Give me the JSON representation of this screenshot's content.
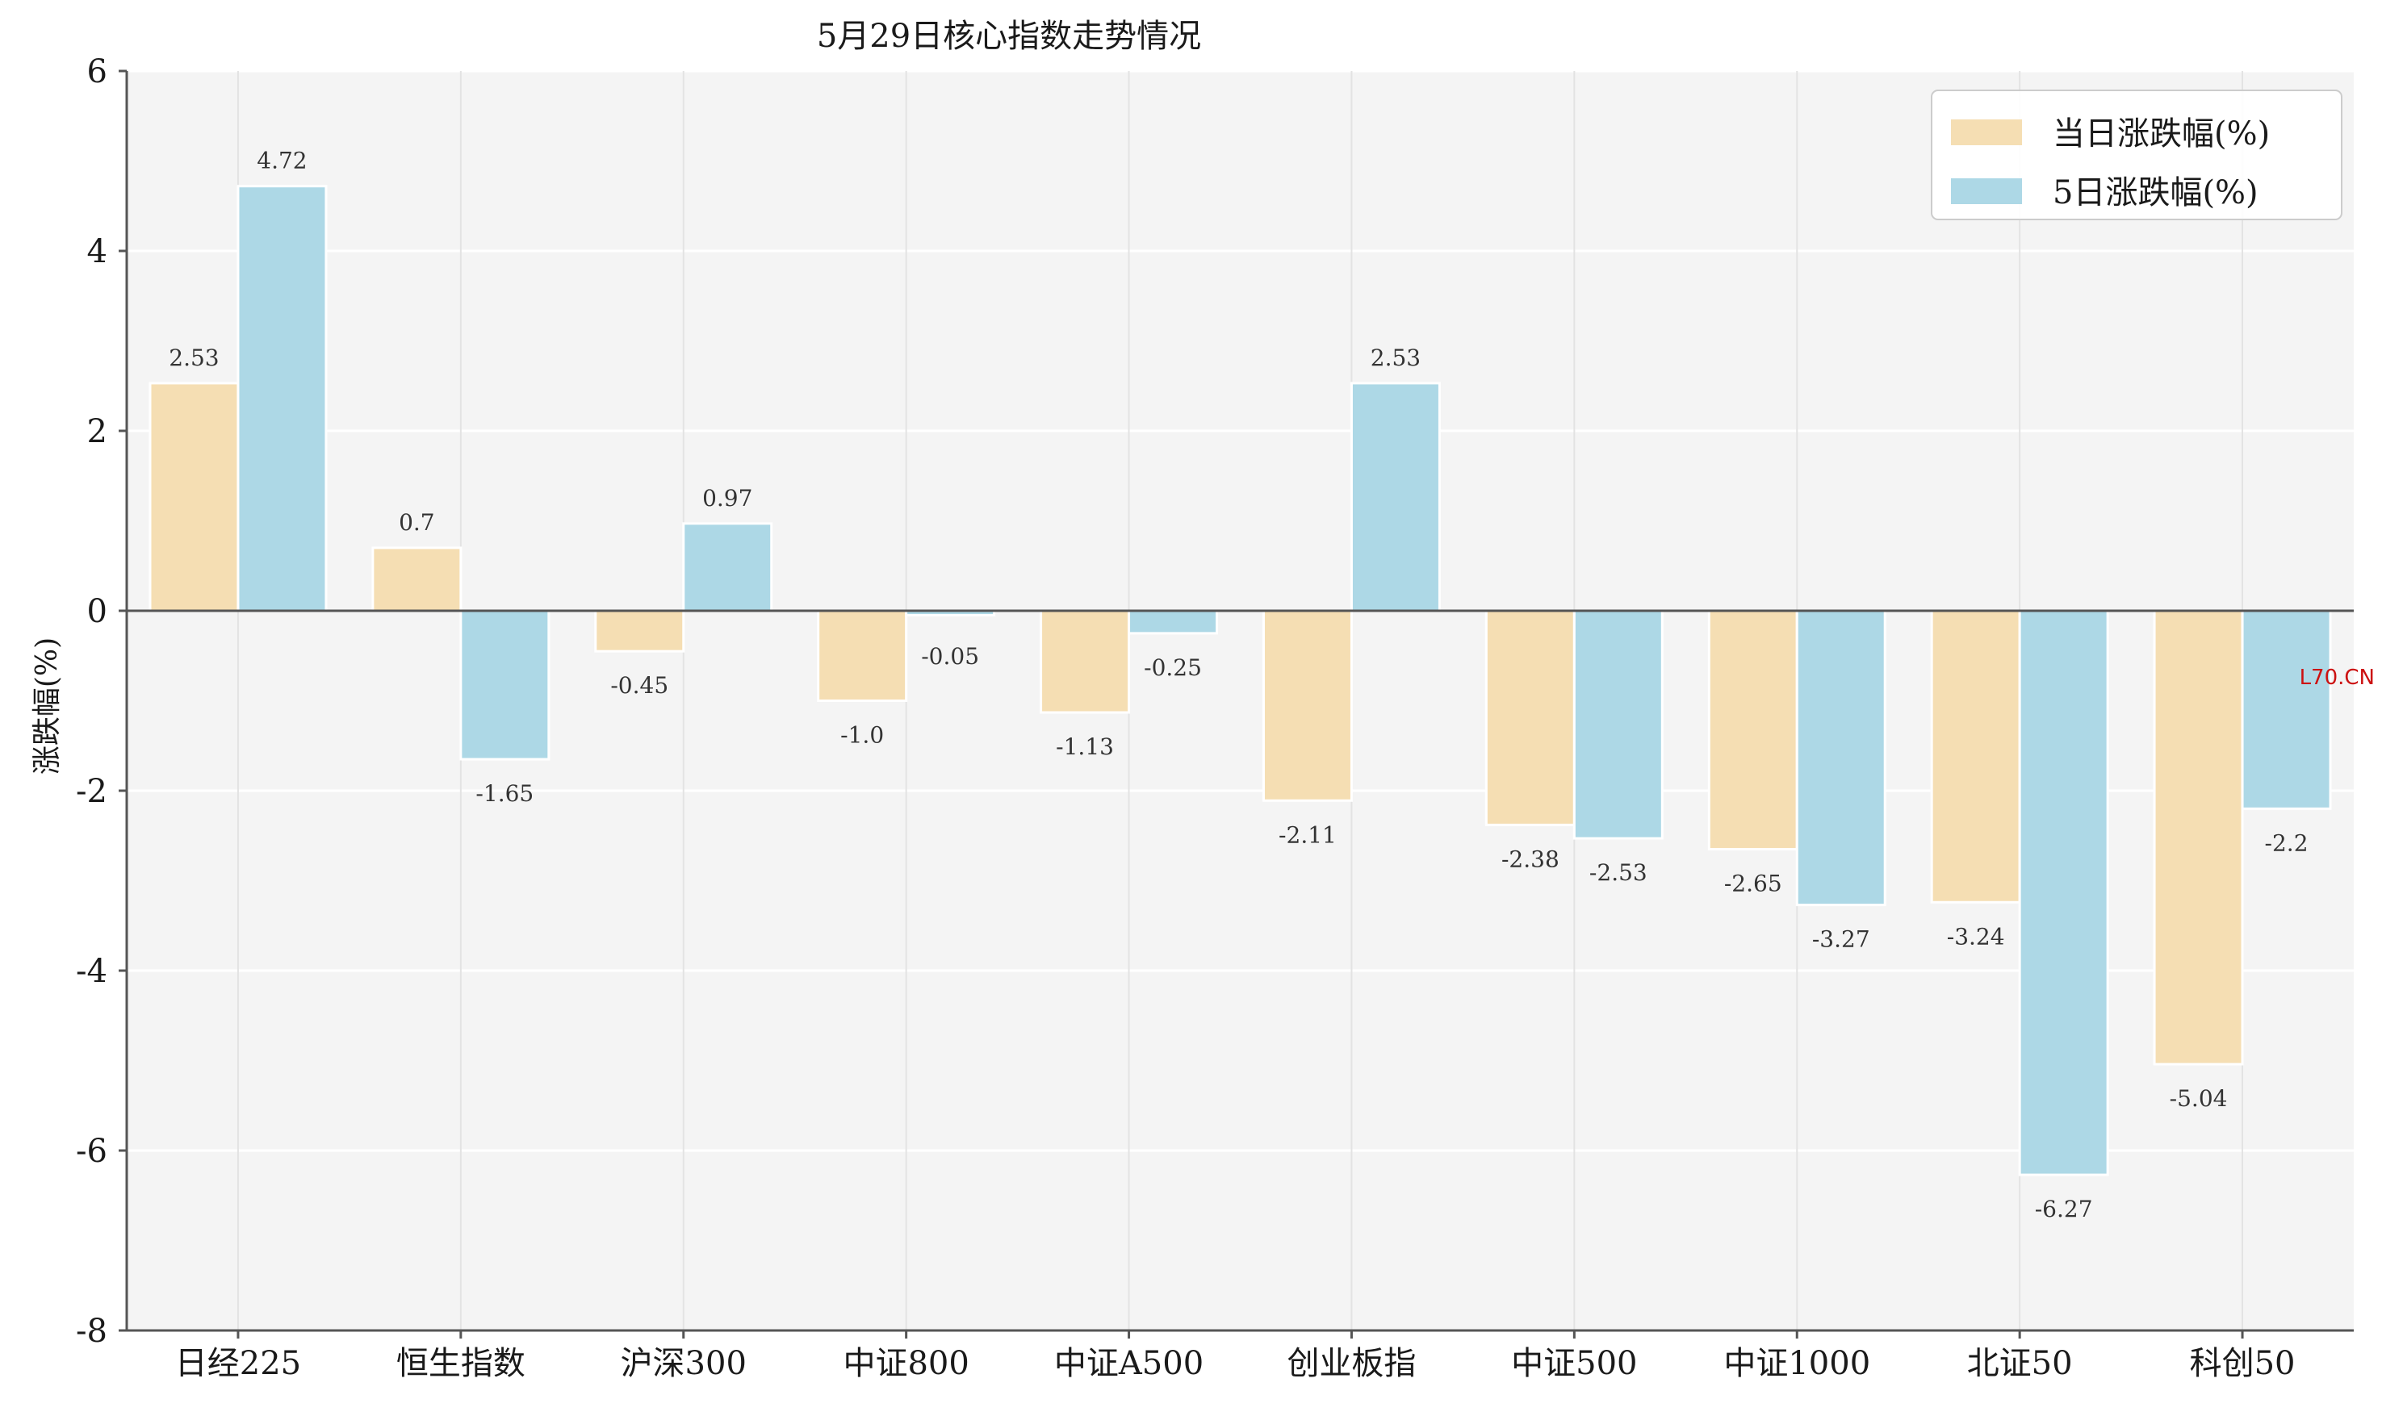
{
  "chart_data": {
    "type": "bar",
    "title": "5月29日核心指数走势情况",
    "xlabel": "",
    "ylabel": "涨跌幅(%)",
    "ylim": [
      -8,
      6
    ],
    "yticks": [
      -8,
      -6,
      -4,
      -2,
      0,
      2,
      4,
      6
    ],
    "ytick_labels": [
      "-8",
      "-6",
      "-4",
      "-2",
      "0",
      "2",
      "4",
      "6"
    ],
    "grid": true,
    "legend_position": "top-right",
    "categories": [
      "日经225",
      "恒生指数",
      "沪深300",
      "中证800",
      "中证A500",
      "创业板指",
      "中证500",
      "中证1000",
      "北证50",
      "科创50"
    ],
    "series": [
      {
        "name": "当日涨跌幅(%)",
        "color": "#f5deb3",
        "values": [
          2.53,
          0.7,
          -0.45,
          -1.0,
          -1.13,
          -2.11,
          -2.38,
          -2.65,
          -3.24,
          -5.04
        ],
        "value_labels": [
          "2.53",
          "0.7",
          "-0.45",
          "-1.0",
          "-1.13",
          "-2.11",
          "-2.38",
          "-2.65",
          "-3.24",
          "-5.04"
        ]
      },
      {
        "name": "5日涨跌幅(%)",
        "color": "#add8e6",
        "values": [
          4.72,
          -1.65,
          0.97,
          -0.05,
          -0.25,
          2.53,
          -2.53,
          -3.27,
          -6.27,
          -2.2
        ],
        "value_labels": [
          "4.72",
          "-1.65",
          "0.97",
          "-0.05",
          "-0.25",
          "2.53",
          "-2.53",
          "-3.27",
          "-6.27",
          "-2.2"
        ]
      }
    ],
    "watermark": "L70.CN"
  },
  "colors": {
    "plot_background": "#f4f4f4",
    "grid": "#ffffff",
    "axis": "#555555",
    "bar_edge": "#ffffff"
  }
}
